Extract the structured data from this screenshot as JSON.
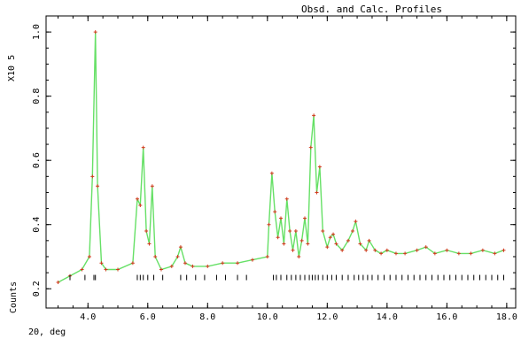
{
  "chart_data": {
    "type": "line",
    "title": "Obsd. and Calc. Profiles",
    "xlabel": "2Θ, deg",
    "ylabel": "Counts",
    "y_scale_label": "X10 5",
    "xlim": [
      2.6,
      18.3
    ],
    "ylim": [
      0.14,
      1.05
    ],
    "xticks": [
      "4.0",
      "6.0",
      "8.0",
      "10.0",
      "12.0",
      "14.0",
      "16.0",
      "18.0"
    ],
    "yticks": [
      "0.2",
      "0.4",
      "0.6",
      "0.8",
      "1.0"
    ],
    "colors": {
      "calc": "#66e066",
      "obs": "#d23a1e",
      "axis": "#000000"
    },
    "calc_profile": {
      "x": [
        3.0,
        3.4,
        3.8,
        4.05,
        4.15,
        4.25,
        4.32,
        4.45,
        4.6,
        5.0,
        5.5,
        5.65,
        5.75,
        5.85,
        5.95,
        6.05,
        6.15,
        6.25,
        6.45,
        6.8,
        7.0,
        7.1,
        7.25,
        7.5,
        8.0,
        8.5,
        9.0,
        9.5,
        10.0,
        10.05,
        10.15,
        10.25,
        10.35,
        10.45,
        10.55,
        10.65,
        10.75,
        10.85,
        10.95,
        11.05,
        11.15,
        11.25,
        11.35,
        11.45,
        11.55,
        11.65,
        11.75,
        11.85,
        12.0,
        12.1,
        12.2,
        12.3,
        12.5,
        12.7,
        12.85,
        12.95,
        13.1,
        13.3,
        13.4,
        13.6,
        13.8,
        14.0,
        14.3,
        14.6,
        15.0,
        15.3,
        15.6,
        16.0,
        16.4,
        16.8,
        17.2,
        17.6,
        17.9
      ],
      "y": [
        0.22,
        0.24,
        0.26,
        0.3,
        0.55,
        1.0,
        0.52,
        0.28,
        0.26,
        0.26,
        0.28,
        0.48,
        0.46,
        0.64,
        0.38,
        0.34,
        0.52,
        0.3,
        0.26,
        0.27,
        0.3,
        0.33,
        0.28,
        0.27,
        0.27,
        0.28,
        0.28,
        0.29,
        0.3,
        0.4,
        0.56,
        0.44,
        0.36,
        0.42,
        0.34,
        0.48,
        0.38,
        0.32,
        0.38,
        0.3,
        0.35,
        0.42,
        0.34,
        0.64,
        0.74,
        0.5,
        0.58,
        0.38,
        0.33,
        0.36,
        0.37,
        0.34,
        0.32,
        0.35,
        0.38,
        0.41,
        0.34,
        0.32,
        0.35,
        0.32,
        0.31,
        0.32,
        0.31,
        0.31,
        0.32,
        0.33,
        0.31,
        0.32,
        0.31,
        0.31,
        0.32,
        0.31,
        0.32
      ]
    },
    "reflection_row_1": [
      3.4,
      3.9,
      4.2,
      4.25,
      5.65,
      5.75,
      5.85,
      6.0,
      6.2,
      6.5,
      7.1,
      7.3,
      7.6,
      7.9,
      8.3,
      8.6,
      9.0,
      9.3
    ],
    "reflection_row_2": [
      10.2,
      10.3,
      10.45,
      10.65,
      10.8,
      10.95,
      11.1,
      11.25,
      11.4,
      11.5,
      11.6,
      11.7,
      11.85,
      12.0,
      12.15,
      12.3,
      12.5,
      12.7,
      12.9,
      13.05,
      13.2,
      13.35,
      13.5,
      13.7,
      13.9,
      14.1,
      14.3,
      14.5,
      14.7,
      14.9,
      15.1,
      15.3,
      15.5,
      15.7,
      15.9,
      16.1,
      16.3,
      16.5,
      16.7,
      16.9,
      17.1,
      17.3,
      17.5,
      17.7,
      17.9
    ]
  }
}
